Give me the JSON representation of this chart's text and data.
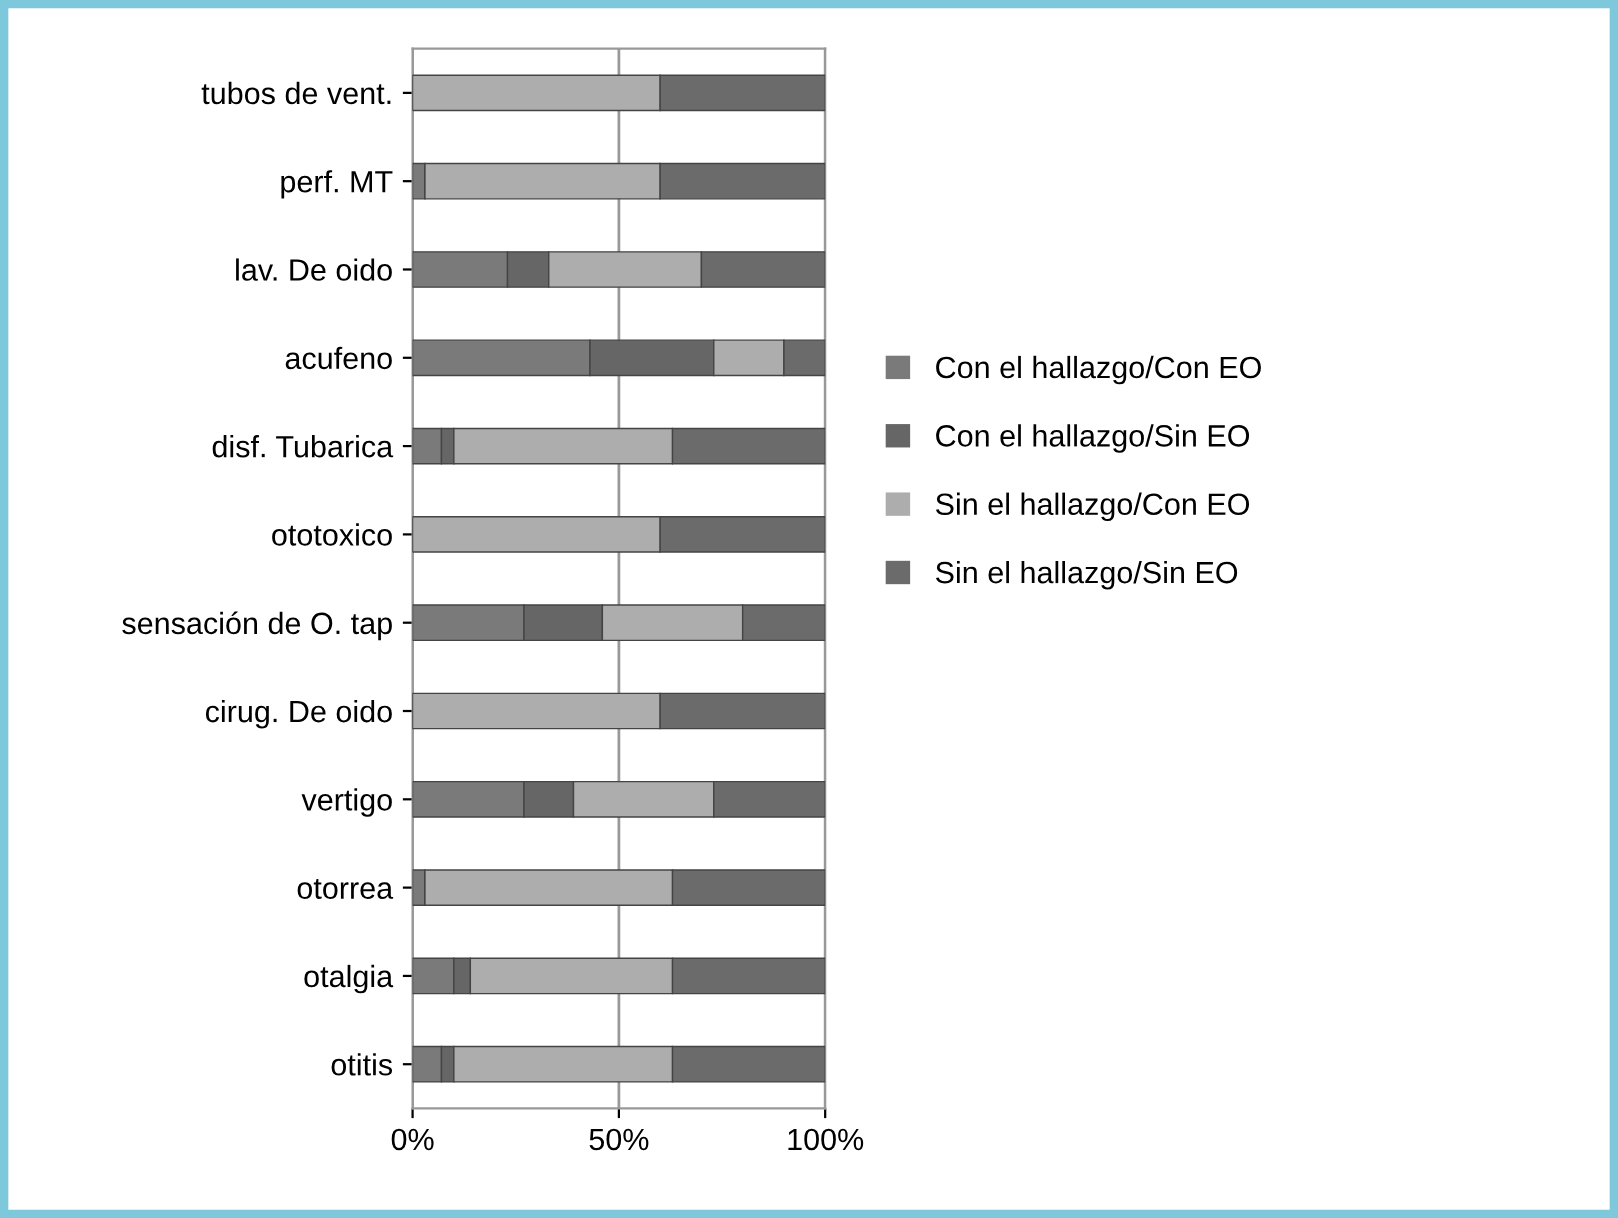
{
  "chart_data": {
    "type": "bar",
    "orientation": "horizontal",
    "stacked": true,
    "categories": [
      "tubos de vent.",
      "perf. MT",
      "lav. De oido",
      "acufeno",
      "disf. Tubarica",
      "ototoxico",
      "sensación de O. tap",
      "cirug. De oido",
      "vertigo",
      "otorrea",
      "otalgia",
      "otitis"
    ],
    "series": [
      {
        "name": "Con el hallazgo/Con EO",
        "color": "#7a7a7a",
        "values": [
          0,
          3,
          23,
          43,
          7,
          0,
          27,
          0,
          27,
          3,
          10,
          7
        ]
      },
      {
        "name": "Con el hallazgo/Sin EO",
        "color": "#666666",
        "values": [
          0,
          0,
          10,
          30,
          3,
          0,
          19,
          0,
          12,
          0,
          4,
          3
        ]
      },
      {
        "name": "Sin el hallazgo/Con EO",
        "color": "#adadad",
        "values": [
          60,
          57,
          37,
          17,
          53,
          60,
          34,
          60,
          34,
          60,
          49,
          53
        ]
      },
      {
        "name": "Sin el hallazgo/Sin EO",
        "color": "#6b6b6b",
        "values": [
          40,
          40,
          30,
          10,
          37,
          40,
          20,
          40,
          27,
          37,
          37,
          37
        ]
      }
    ],
    "xlim": [
      0,
      100
    ],
    "xticks": [
      {
        "value": 0,
        "label": "0%"
      },
      {
        "value": 50,
        "label": "50%"
      },
      {
        "value": 100,
        "label": "100%"
      }
    ],
    "grid": "x",
    "legend": "right"
  }
}
